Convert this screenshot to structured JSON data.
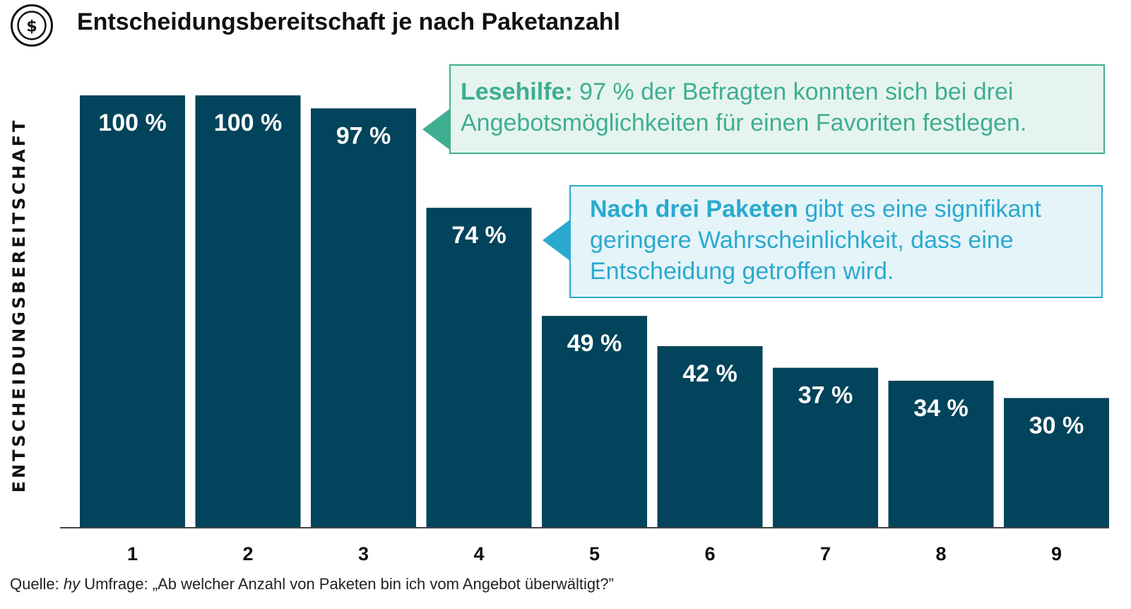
{
  "header": {
    "title": "Entscheidungsbereitschaft je nach Paketanzahl",
    "logo_icon": "dollar-coin-icon"
  },
  "colors": {
    "bar": "#02445b",
    "callout1_text": "#3fae91",
    "callout1_bg": "#e6f4ef",
    "callout2_text": "#2aa9cf",
    "callout2_bg": "#e5f4f9"
  },
  "chart_data": {
    "type": "bar",
    "title": "Entscheidungsbereitschaft je nach Paketanzahl",
    "ylabel": "ENTSCHEIDUNGSBEREITSCHAFT",
    "xlabel": "",
    "categories": [
      "1",
      "2",
      "3",
      "4",
      "5",
      "6",
      "7",
      "8",
      "9"
    ],
    "values": [
      100,
      100,
      97,
      74,
      49,
      42,
      37,
      34,
      30
    ],
    "value_labels": [
      "100 %",
      "100 %",
      "97 %",
      "74 %",
      "49 %",
      "42 %",
      "37 %",
      "34 %",
      "30 %"
    ],
    "ylim": [
      0,
      100
    ],
    "grid": false,
    "legend": "none"
  },
  "callouts": [
    {
      "bold": "Lesehilfe:",
      "text": " 97 % der Befragten konnten sich bei drei Angebotsmöglichkeiten für einen Favoriten festlegen."
    },
    {
      "bold": "Nach drei Paketen",
      "text": " gibt es eine signifikant geringere Wahrscheinlichkeit, dass eine Entscheidung getroffen wird."
    }
  ],
  "source": {
    "prefix": "Quelle: ",
    "italic": "hy",
    "rest": " Umfrage: „Ab welcher Anzahl von Paketen bin ich vom Angebot überwältigt?”"
  }
}
